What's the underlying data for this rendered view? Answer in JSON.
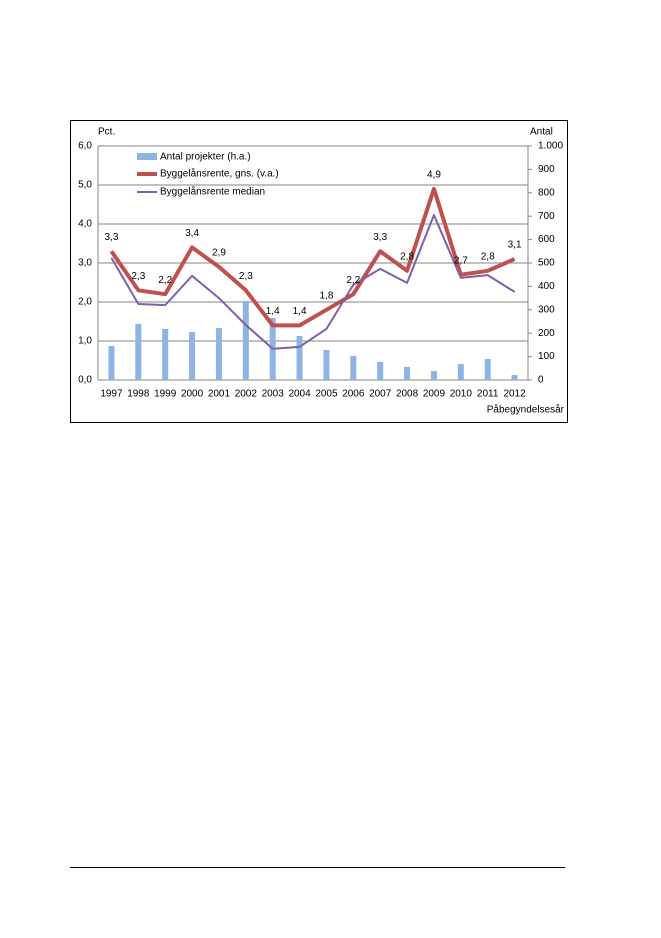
{
  "chart_data": {
    "type": "bar_line",
    "y_label": "Pct.",
    "y2_label": "Antal",
    "x_label": "Påbegyndelsesår",
    "categories": [
      "1997",
      "1998",
      "1999",
      "2000",
      "2001",
      "2002",
      "2003",
      "2004",
      "2005",
      "2006",
      "2007",
      "2008",
      "2009",
      "2010",
      "2011",
      "2012"
    ],
    "series": [
      {
        "name": "Antal projekter (h.a.)",
        "type": "bar",
        "axis": "y2",
        "color": "#8db4e2",
        "values": [
          145,
          240,
          218,
          205,
          222,
          338,
          265,
          188,
          128,
          103,
          77,
          56,
          38,
          68,
          90,
          21
        ]
      },
      {
        "name": "Byggelånsrente, gns. (v.a.)",
        "type": "line",
        "color": "#c0504d",
        "values": [
          3.3,
          2.3,
          2.2,
          3.4,
          2.9,
          2.3,
          1.4,
          1.4,
          1.8,
          2.2,
          3.3,
          2.8,
          4.9,
          2.7,
          2.8,
          3.1
        ],
        "value_labels": [
          "3,3",
          "2,3",
          "2,2",
          "3,4",
          "2,9",
          "2,3",
          "1,4",
          "1,4",
          "1,8",
          "2,2",
          "3,3",
          "2,8",
          "4,9",
          "2,7",
          "2,8",
          "3,1"
        ]
      },
      {
        "name": "Byggelånsrente median",
        "type": "line",
        "color": "#7f5fa8",
        "values": [
          3.13,
          1.95,
          1.92,
          2.67,
          2.1,
          1.41,
          0.8,
          0.85,
          1.31,
          2.44,
          2.85,
          2.49,
          4.23,
          2.62,
          2.69,
          2.26
        ]
      }
    ],
    "ylim": [
      0,
      6
    ],
    "yticks": [
      {
        "value": 0,
        "label": "0,0"
      },
      {
        "value": 1,
        "label": "1,0"
      },
      {
        "value": 2,
        "label": "2,0"
      },
      {
        "value": 3,
        "label": "3,0"
      },
      {
        "value": 4,
        "label": "4,0"
      },
      {
        "value": 5,
        "label": "5,0"
      },
      {
        "value": 6,
        "label": "6,0"
      }
    ],
    "y2lim": [
      0,
      1000
    ],
    "y2ticks": [
      0,
      100,
      200,
      300,
      400,
      500,
      600,
      700,
      800,
      900,
      {
        "value": 1000,
        "label": "1.000"
      }
    ],
    "grid": true
  }
}
